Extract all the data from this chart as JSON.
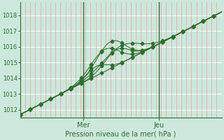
{
  "bg_color": "#cce8dc",
  "plot_bg_color": "#cce8dc",
  "grid_h_color": "#ffffff",
  "grid_v_color": "#e8a0a0",
  "line_color": "#2d6e2d",
  "sep_line_color": "#3a6e3a",
  "ylim": [
    1011.5,
    1018.8
  ],
  "yticks": [
    1012,
    1013,
    1014,
    1015,
    1016,
    1017,
    1018
  ],
  "xlabel": "Pression niveau de la mer( hPa )",
  "x_day_labels": [
    [
      "Mer",
      0.315
    ],
    [
      "Jeu",
      0.69
    ]
  ],
  "n_vgrid": 40,
  "marker": "D",
  "markersize": 2.5
}
